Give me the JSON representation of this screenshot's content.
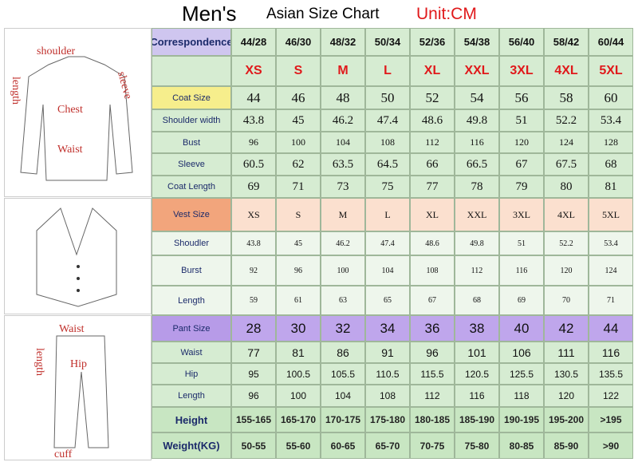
{
  "header": {
    "title": "Men's",
    "subtitle": "Asian Size Chart",
    "unit": "Unit:CM"
  },
  "diagrams": {
    "coat": [
      "shoulder",
      "length",
      "sleeve",
      "Chest",
      "Waist"
    ],
    "pants": [
      "Waist",
      "length",
      "Hip",
      "cuff"
    ]
  },
  "table": {
    "rows": [
      {
        "label": "Correspondence",
        "cells": [
          "44/28",
          "46/30",
          "48/32",
          "50/34",
          "52/36",
          "54/38",
          "56/40",
          "58/42",
          "60/44"
        ]
      },
      {
        "cells": [
          "XS",
          "S",
          "M",
          "L",
          "XL",
          "XXL",
          "3XL",
          "4XL",
          "5XL"
        ]
      },
      {
        "label": "Coat Size",
        "cells": [
          "44",
          "46",
          "48",
          "50",
          "52",
          "54",
          "56",
          "58",
          "60"
        ]
      },
      {
        "label": "Shoulder width",
        "cells": [
          "43.8",
          "45",
          "46.2",
          "47.4",
          "48.6",
          "49.8",
          "51",
          "52.2",
          "53.4"
        ]
      },
      {
        "label": "Bust",
        "cells": [
          "96",
          "100",
          "104",
          "108",
          "112",
          "116",
          "120",
          "124",
          "128"
        ]
      },
      {
        "label": "Sleeve",
        "cells": [
          "60.5",
          "62",
          "63.5",
          "64.5",
          "66",
          "66.5",
          "67",
          "67.5",
          "68"
        ]
      },
      {
        "label": "Coat Length",
        "cells": [
          "69",
          "71",
          "73",
          "75",
          "77",
          "78",
          "79",
          "80",
          "81"
        ]
      },
      {
        "label": "Vest Size",
        "cells": [
          "XS",
          "S",
          "M",
          "L",
          "XL",
          "XXL",
          "3XL",
          "4XL",
          "5XL"
        ]
      },
      {
        "label": "Shoudler",
        "cells": [
          "43.8",
          "45",
          "46.2",
          "47.4",
          "48.6",
          "49.8",
          "51",
          "52.2",
          "53.4"
        ]
      },
      {
        "label": "Burst",
        "cells": [
          "92",
          "96",
          "100",
          "104",
          "108",
          "112",
          "116",
          "120",
          "124"
        ]
      },
      {
        "label": "Length",
        "cells": [
          "59",
          "61",
          "63",
          "65",
          "67",
          "68",
          "69",
          "70",
          "71"
        ]
      },
      {
        "label": "Pant Size",
        "cells": [
          "28",
          "30",
          "32",
          "34",
          "36",
          "38",
          "40",
          "42",
          "44"
        ]
      },
      {
        "label": "Waist",
        "cells": [
          "77",
          "81",
          "86",
          "91",
          "96",
          "101",
          "106",
          "111",
          "116"
        ]
      },
      {
        "label": "Hip",
        "cells": [
          "95",
          "100.5",
          "105.5",
          "110.5",
          "115.5",
          "120.5",
          "125.5",
          "130.5",
          "135.5"
        ]
      },
      {
        "label": "Length",
        "cells": [
          "96",
          "100",
          "104",
          "108",
          "112",
          "116",
          "118",
          "120",
          "122"
        ]
      },
      {
        "label": "Height",
        "cells": [
          "155-165",
          "165-170",
          "170-175",
          "175-180",
          "180-185",
          "185-190",
          "190-195",
          "195-200",
          ">195"
        ]
      },
      {
        "label": "Weight(KG)",
        "cells": [
          "50-55",
          "55-60",
          "60-65",
          "65-70",
          "70-75",
          "75-80",
          "80-85",
          "85-90",
          ">90"
        ]
      }
    ]
  }
}
